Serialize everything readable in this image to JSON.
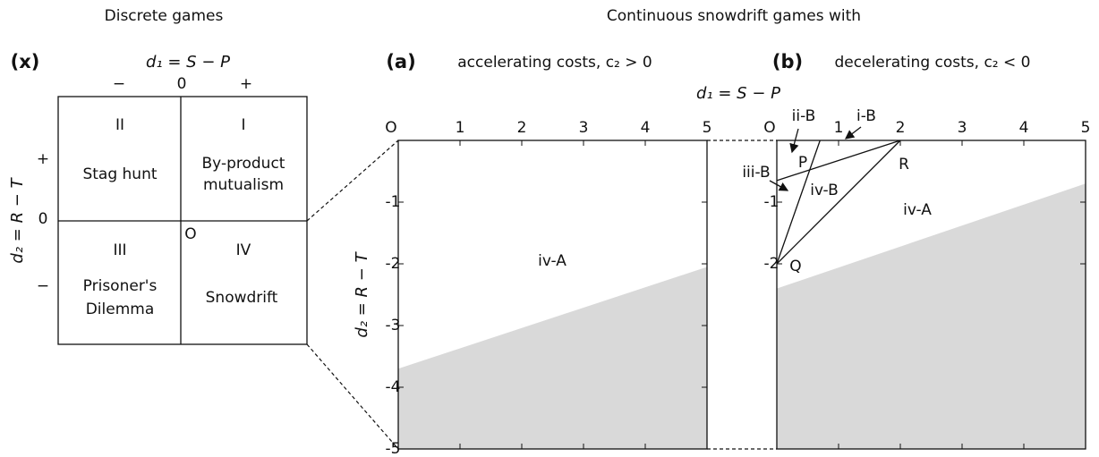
{
  "titles": {
    "discrete": "Discrete games",
    "continuous": "Continuous snowdrift games with"
  },
  "panel_x": {
    "label": "(x)",
    "x_axis_label": "d₁ = S − P",
    "x_signs": [
      "−",
      "0",
      "+"
    ],
    "y_axis_label": "d₂ = R − T",
    "y_signs": [
      "+",
      "0",
      "−"
    ],
    "origin_label": "O",
    "quadrants": [
      {
        "numeral": "II",
        "name": [
          "Stag hunt"
        ]
      },
      {
        "numeral": "I",
        "name": [
          "By-product",
          "mutualism"
        ]
      },
      {
        "numeral": "III",
        "name": [
          "Prisoner's",
          "Dilemma"
        ]
      },
      {
        "numeral": "IV",
        "name": [
          "Snowdrift"
        ]
      }
    ]
  },
  "panel_a": {
    "label": "(a)",
    "subtitle": "accelerating costs, c₂ > 0",
    "y_axis_label": "d₂ = R − T",
    "xlim": [
      0,
      5
    ],
    "ylim": [
      -5,
      0
    ],
    "xticks": [
      {
        "value": 0,
        "label": "O"
      },
      1,
      2,
      3,
      4,
      5
    ],
    "yticks": [
      -1,
      -2,
      -3,
      -4,
      -5
    ],
    "boundary": {
      "x": [
        0,
        5
      ],
      "y": [
        -3.7,
        -2.05
      ]
    },
    "region_label": "iv-A"
  },
  "panel_b": {
    "label": "(b)",
    "subtitle": "decelerating costs, c₂ < 0",
    "x_axis_label": "d₁ = S − P",
    "xlim": [
      0,
      5
    ],
    "ylim": [
      -5,
      0
    ],
    "xticks": [
      {
        "value": 0,
        "label": "O"
      },
      1,
      2,
      3,
      4,
      5
    ],
    "yticks": [
      -1,
      -2
    ],
    "boundary": {
      "x": [
        0,
        5
      ],
      "y": [
        -2.4,
        -0.7
      ]
    },
    "lines": [
      {
        "x": [
          0,
          0.7
        ],
        "y": [
          -2,
          0
        ]
      },
      {
        "x": [
          0,
          2
        ],
        "y": [
          -2,
          0
        ]
      },
      {
        "x": [
          0,
          2
        ],
        "y": [
          -0.65,
          0
        ]
      }
    ],
    "region_labels": {
      "iv_A": "iv-A",
      "ii_B": "ii-B",
      "i_B": "i-B",
      "iii_B": "iii-B",
      "iv_B": "iv-B",
      "P": "P",
      "R": "R",
      "Q": "Q"
    }
  }
}
